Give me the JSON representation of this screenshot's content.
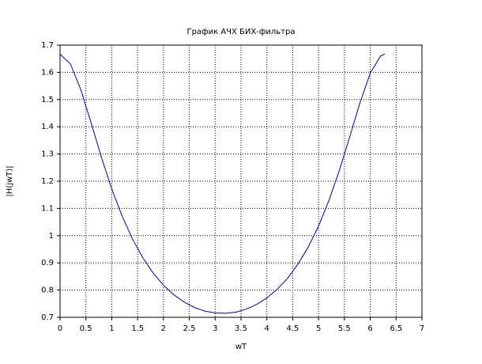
{
  "chart_data": {
    "type": "line",
    "title": "График АЧХ БИХ-фильтра",
    "x_label": "wT",
    "y_label": "|H(jwT)|",
    "x": [
      0,
      0.2,
      0.4,
      0.6,
      0.8,
      1.0,
      1.2,
      1.4,
      1.6,
      1.8,
      2.0,
      2.2,
      2.4,
      2.6,
      2.8,
      3.0,
      3.2,
      3.4,
      3.6,
      3.8,
      4.0,
      4.2,
      4.4,
      4.6,
      4.8,
      5.0,
      5.2,
      5.4,
      5.6,
      5.8,
      6.0,
      6.2,
      6.28
    ],
    "values": [
      1.667,
      1.631,
      1.537,
      1.415,
      1.288,
      1.172,
      1.072,
      0.988,
      0.919,
      0.863,
      0.818,
      0.783,
      0.756,
      0.736,
      0.723,
      0.716,
      0.715,
      0.719,
      0.73,
      0.747,
      0.771,
      0.803,
      0.843,
      0.895,
      0.958,
      1.035,
      1.129,
      1.238,
      1.361,
      1.488,
      1.597,
      1.66,
      1.667
    ],
    "color": "#0000a0",
    "xlim": [
      0,
      7
    ],
    "xticks": [
      0,
      0.5,
      1,
      1.5,
      2,
      2.5,
      3,
      3.5,
      4,
      4.5,
      5,
      5.5,
      6,
      6.5,
      7
    ],
    "ylim": [
      0.7,
      1.7
    ],
    "yticks": [
      0.7,
      0.8,
      0.9,
      1,
      1.1,
      1.2,
      1.3,
      1.4,
      1.5,
      1.6,
      1.7
    ],
    "grid": true
  }
}
